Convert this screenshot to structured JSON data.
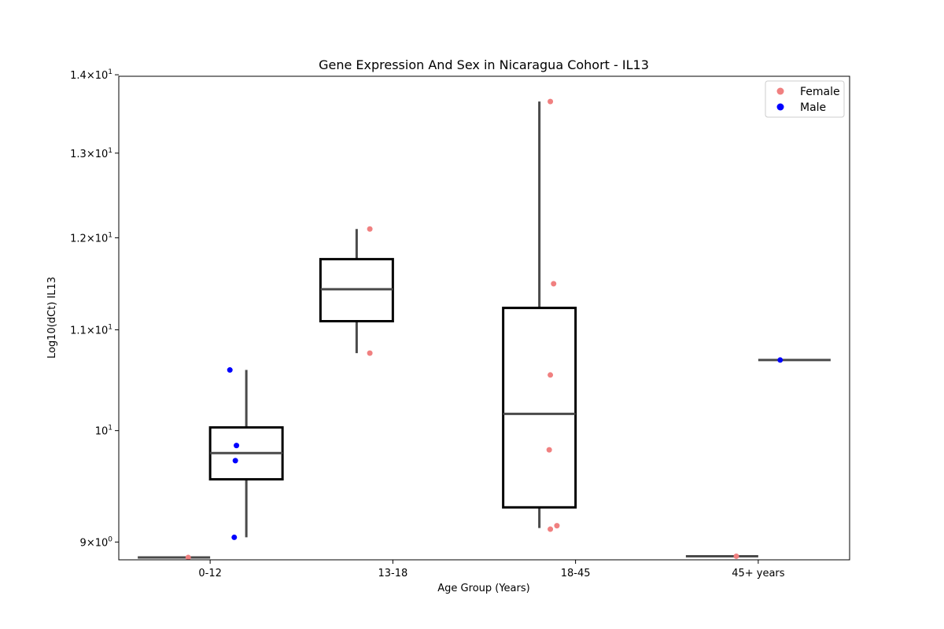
{
  "chart_data": {
    "type": "boxplot",
    "title": "Gene Expression And Sex in Nicaragua Cohort - IL13",
    "xlabel": "Age Group (Years)",
    "ylabel": "Log10(dCt) IL13",
    "y_scale": "log",
    "ylim": [
      8.85,
      13.98
    ],
    "y_ticks": [
      {
        "value": 9,
        "base": "9",
        "exp": "0"
      },
      {
        "value": 10,
        "base": "10",
        "exp": "1"
      },
      {
        "value": 11,
        "base": "1.1",
        "exp": "1"
      },
      {
        "value": 12,
        "base": "1.2",
        "exp": "1"
      },
      {
        "value": 13,
        "base": "1.3",
        "exp": "1"
      },
      {
        "value": 14,
        "base": "1.4",
        "exp": "1"
      }
    ],
    "categories": [
      "0-12",
      "13-18",
      "18-45",
      "45+ years"
    ],
    "series": [
      {
        "name": "Female",
        "color": "#f08080"
      },
      {
        "name": "Male",
        "color": "#0000ff"
      }
    ],
    "boxes": [
      {
        "category": "0-12",
        "hue": "Female",
        "min": 8.87,
        "q1": 8.87,
        "median": 8.87,
        "q3": 8.87,
        "max": 8.87
      },
      {
        "category": "0-12",
        "hue": "Male",
        "min": 9.04,
        "q1": 9.55,
        "median": 9.79,
        "q3": 10.03,
        "max": 10.59
      },
      {
        "category": "13-18",
        "hue": "Female",
        "min": 10.76,
        "q1": 11.09,
        "median": 11.43,
        "q3": 11.76,
        "max": 12.1
      },
      {
        "category": "18-45",
        "hue": "Female",
        "min": 9.12,
        "q1": 9.3,
        "median": 10.16,
        "q3": 11.23,
        "max": 13.65
      },
      {
        "category": "45+ years",
        "hue": "Female",
        "min": 8.88,
        "q1": 8.88,
        "median": 8.88,
        "q3": 8.88,
        "max": 8.88
      },
      {
        "category": "45+ years",
        "hue": "Male",
        "min": 10.69,
        "q1": 10.69,
        "median": 10.69,
        "q3": 10.69,
        "max": 10.69
      }
    ],
    "points": [
      {
        "category": "0-12",
        "hue": "Female",
        "offset": -0.2,
        "y": 8.87
      },
      {
        "category": "0-12",
        "hue": "Male",
        "offset": 0.18,
        "y": 10.59
      },
      {
        "category": "0-12",
        "hue": "Male",
        "offset": 0.24,
        "y": 9.86
      },
      {
        "category": "0-12",
        "hue": "Male",
        "offset": 0.23,
        "y": 9.72
      },
      {
        "category": "0-12",
        "hue": "Male",
        "offset": 0.22,
        "y": 9.04
      },
      {
        "category": "13-18",
        "hue": "Female",
        "offset": -0.21,
        "y": 12.1
      },
      {
        "category": "13-18",
        "hue": "Female",
        "offset": -0.21,
        "y": 10.76
      },
      {
        "category": "18-45",
        "hue": "Female",
        "offset": -0.23,
        "y": 13.65
      },
      {
        "category": "18-45",
        "hue": "Female",
        "offset": -0.2,
        "y": 11.49
      },
      {
        "category": "18-45",
        "hue": "Female",
        "offset": -0.23,
        "y": 10.54
      },
      {
        "category": "18-45",
        "hue": "Female",
        "offset": -0.24,
        "y": 9.82
      },
      {
        "category": "18-45",
        "hue": "Female",
        "offset": -0.17,
        "y": 9.14
      },
      {
        "category": "18-45",
        "hue": "Female",
        "offset": -0.23,
        "y": 9.11
      },
      {
        "category": "45+ years",
        "hue": "Female",
        "offset": -0.2,
        "y": 8.88
      },
      {
        "category": "45+ years",
        "hue": "Male",
        "offset": 0.2,
        "y": 10.69
      }
    ],
    "legend": {
      "position": "top-right",
      "entries": [
        "Female",
        "Male"
      ]
    },
    "grid": false
  }
}
